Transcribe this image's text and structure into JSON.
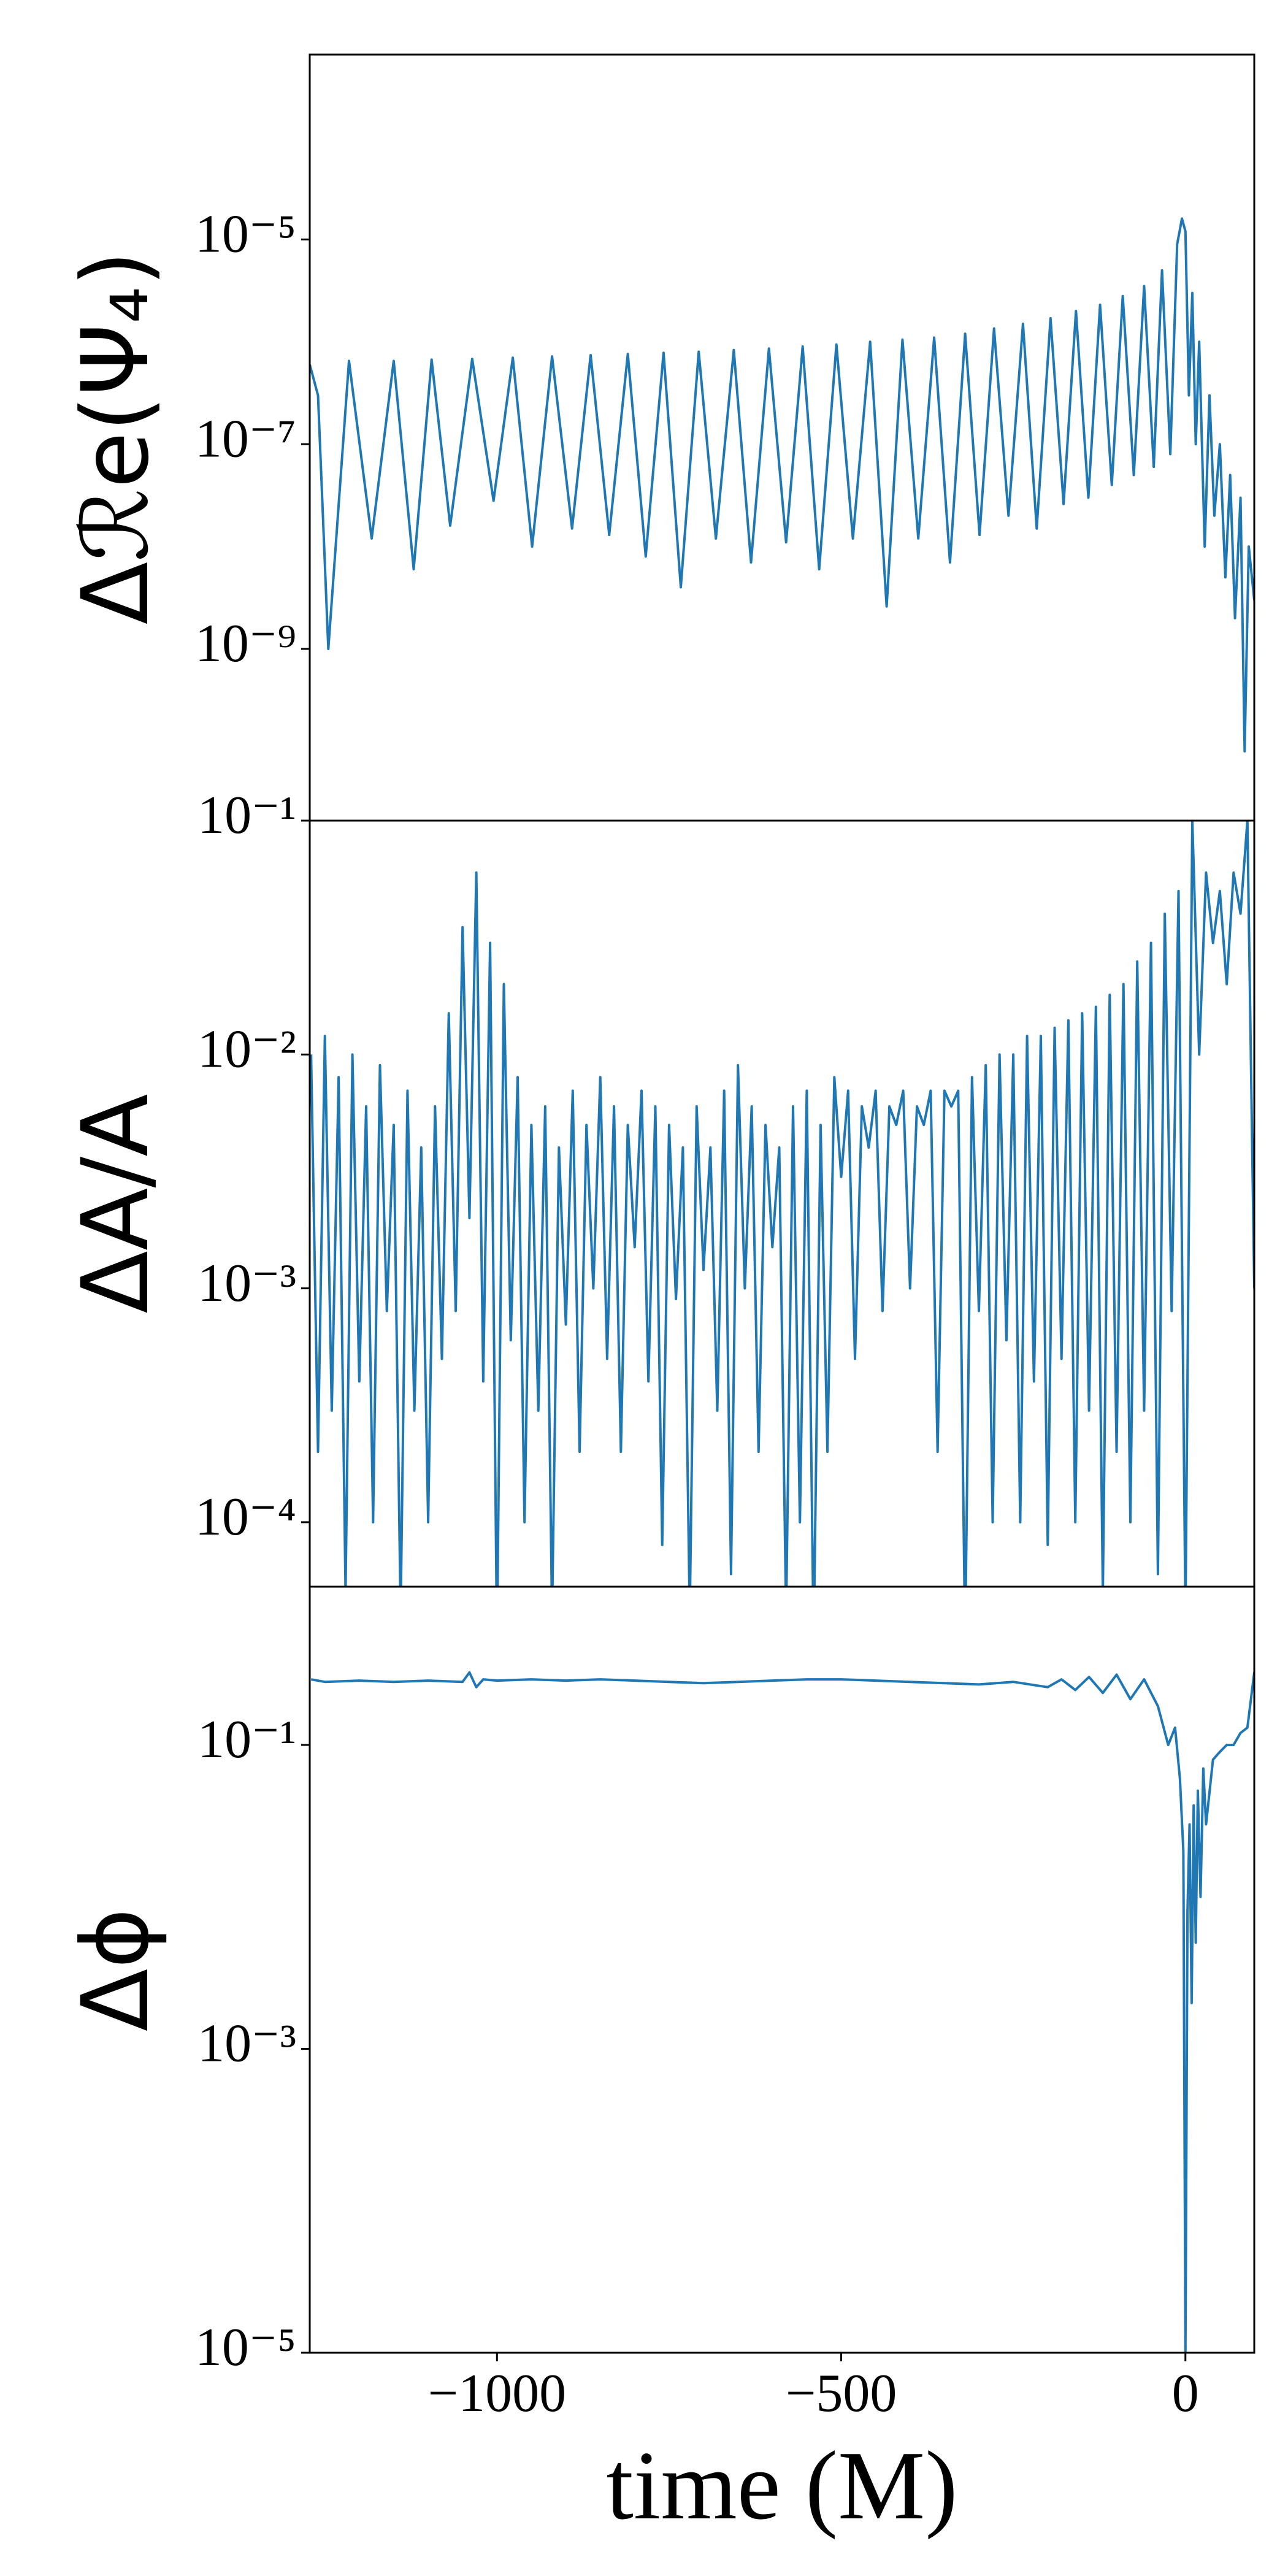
{
  "chart_data": [
    {
      "type": "line",
      "ylabel": "Δℛe(Ψ₄)",
      "yscale": "log",
      "xlim": [
        -1272,
        100
      ],
      "ylim": [
        2.1e-11,
        0.00064
      ],
      "yticks": [
        {
          "value": 1e-05,
          "label": "10⁻⁵"
        },
        {
          "value": 1e-07,
          "label": "10⁻⁷"
        },
        {
          "value": 1e-09,
          "label": "10⁻⁹"
        }
      ],
      "series": [
        {
          "color": "#1f77b4",
          "x": [
            -1272,
            -1260,
            -1245,
            -1215,
            -1182,
            -1150,
            -1121,
            -1095,
            -1068,
            -1036,
            -1005,
            -977,
            -949,
            -920,
            -891,
            -864,
            -837,
            -810,
            -784,
            -758,
            -733,
            -707,
            -682,
            -656,
            -631,
            -605,
            -580,
            -556,
            -532,
            -507,
            -483,
            -458,
            -434,
            -411,
            -388,
            -365,
            -342,
            -320,
            -299,
            -278,
            -257,
            -236,
            -216,
            -196,
            -177,
            -159,
            -141,
            -124,
            -107,
            -91,
            -75,
            -60,
            -46,
            -34,
            -22,
            -12,
            -5,
            0,
            5,
            10,
            15,
            20,
            28,
            35,
            42,
            50,
            58,
            65,
            72,
            80,
            86,
            92,
            100
          ],
          "values": [
            6e-07,
            3e-07,
            1e-09,
            6.5e-07,
            1.2e-08,
            6.5e-07,
            6e-09,
            6.7e-07,
            1.6e-08,
            6.8e-07,
            2.8e-08,
            7e-07,
            1e-08,
            7.2e-07,
            1.5e-08,
            7.4e-07,
            1.3e-08,
            7.6e-07,
            8e-09,
            7.8e-07,
            4e-09,
            8e-07,
            1.2e-08,
            8.3e-07,
            7e-09,
            8.6e-07,
            1.1e-08,
            9e-07,
            6e-09,
            9.4e-07,
            1.2e-08,
            1e-06,
            2.6e-09,
            1.05e-06,
            1.2e-08,
            1.1e-06,
            7e-09,
            1.2e-06,
            1.3e-08,
            1.35e-06,
            2e-08,
            1.5e-06,
            1.5e-08,
            1.7e-06,
            2.6e-08,
            2e-06,
            3e-08,
            2.3e-06,
            4e-08,
            2.8e-06,
            5e-08,
            3.5e-06,
            6e-08,
            5e-06,
            8e-08,
            9e-06,
            1.6e-05,
            1.2e-05,
            3e-07,
            3e-06,
            1e-07,
            1e-06,
            1e-08,
            3e-07,
            2e-08,
            1e-07,
            5e-09,
            5e-08,
            2e-09,
            3e-08,
            1e-10,
            1e-08,
            3e-09
          ]
        }
      ]
    },
    {
      "type": "line",
      "ylabel": "ΔA/A",
      "yscale": "log",
      "xlim": [
        -1272,
        100
      ],
      "ylim": [
        5.3e-05,
        0.1
      ],
      "yticks": [
        {
          "value": 0.0001,
          "label": "10⁻⁴"
        },
        {
          "value": 0.001,
          "label": "10⁻³"
        },
        {
          "value": 0.01,
          "label": "10⁻²"
        },
        {
          "value": 0.1,
          "label": "10⁻¹"
        }
      ],
      "series": [
        {
          "color": "#1f77b4",
          "x": [
            -1270,
            -1260,
            -1250,
            -1240,
            -1230,
            -1220,
            -1210,
            -1200,
            -1190,
            -1180,
            -1170,
            -1160,
            -1150,
            -1140,
            -1130,
            -1120,
            -1110,
            -1100,
            -1090,
            -1080,
            -1070,
            -1060,
            -1050,
            -1040,
            -1030,
            -1020,
            -1010,
            -1000,
            -990,
            -980,
            -970,
            -960,
            -950,
            -940,
            -930,
            -920,
            -910,
            -900,
            -890,
            -880,
            -870,
            -860,
            -850,
            -840,
            -830,
            -820,
            -810,
            -800,
            -790,
            -780,
            -770,
            -760,
            -750,
            -740,
            -730,
            -720,
            -710,
            -700,
            -690,
            -680,
            -670,
            -660,
            -650,
            -640,
            -630,
            -620,
            -610,
            -600,
            -590,
            -580,
            -570,
            -560,
            -550,
            -540,
            -530,
            -520,
            -510,
            -500,
            -490,
            -480,
            -470,
            -460,
            -450,
            -440,
            -430,
            -420,
            -410,
            -400,
            -390,
            -380,
            -370,
            -360,
            -350,
            -340,
            -330,
            -320,
            -310,
            -300,
            -290,
            -280,
            -270,
            -260,
            -250,
            -240,
            -230,
            -220,
            -210,
            -200,
            -190,
            -180,
            -170,
            -160,
            -150,
            -140,
            -130,
            -120,
            -110,
            -100,
            -90,
            -80,
            -70,
            -60,
            -50,
            -40,
            -30,
            -20,
            -10,
            0,
            10,
            20,
            30,
            40,
            50,
            60,
            70,
            80,
            90,
            100
          ],
          "values": [
            0.01,
            0.0002,
            0.012,
            0.0003,
            0.008,
            5e-05,
            0.01,
            0.0004,
            0.006,
            0.0001,
            0.009,
            0.0008,
            0.005,
            4e-05,
            0.007,
            0.0003,
            0.004,
            0.0001,
            0.006,
            0.0005,
            0.015,
            0.0008,
            0.035,
            0.002,
            0.06,
            0.0004,
            0.03,
            3e-05,
            0.02,
            0.0006,
            0.008,
            0.0001,
            0.005,
            0.0003,
            0.006,
            4e-05,
            0.004,
            0.0007,
            0.007,
            0.0002,
            0.005,
            0.001,
            0.008,
            0.0005,
            0.006,
            0.0002,
            0.005,
            0.0015,
            0.007,
            0.0004,
            0.006,
            8e-05,
            0.005,
            0.0009,
            0.004,
            4e-05,
            0.006,
            0.0012,
            0.004,
            0.0003,
            0.007,
            6e-05,
            0.009,
            0.001,
            0.006,
            0.0002,
            0.005,
            0.0015,
            0.004,
            4e-05,
            0.006,
            0.0001,
            0.007,
            3e-05,
            0.005,
            0.0002,
            0.008,
            0.003,
            0.007,
            0.0005,
            0.006,
            0.004,
            0.007,
            0.0008,
            0.006,
            0.005,
            0.007,
            0.001,
            0.006,
            0.005,
            0.007,
            0.0002,
            0.007,
            0.006,
            0.007,
            3e-05,
            0.008,
            0.0008,
            0.009,
            0.0001,
            0.01,
            0.0006,
            0.01,
            0.0001,
            0.012,
            0.0004,
            0.012,
            8e-05,
            0.013,
            0.0005,
            0.014,
            0.0001,
            0.015,
            0.0003,
            0.016,
            5e-05,
            0.018,
            0.0002,
            0.02,
            0.0001,
            0.025,
            0.0003,
            0.03,
            6e-05,
            0.04,
            0.0008,
            0.05,
            4e-05,
            0.1,
            0.01,
            0.06,
            0.03,
            0.05,
            0.02,
            0.06,
            0.04,
            0.1,
            0.001
          ]
        }
      ]
    },
    {
      "type": "line",
      "ylabel": "Δϕ",
      "xlabel": "time (M)",
      "yscale": "log",
      "xlim": [
        -1272,
        100
      ],
      "ylim": [
        1e-05,
        1.1
      ],
      "xticks": [
        {
          "value": -1000,
          "label": "−1000"
        },
        {
          "value": -500,
          "label": "−500"
        },
        0
      ],
      "yticks": [
        {
          "value": 0.1,
          "label": "10⁻¹"
        },
        {
          "value": 0.001,
          "label": "10⁻³"
        },
        {
          "value": 1e-05,
          "label": "10⁻⁵"
        }
      ],
      "series": [
        {
          "color": "#1f77b4",
          "x": [
            -1270,
            -1250,
            -1200,
            -1150,
            -1100,
            -1050,
            -1040,
            -1030,
            -1020,
            -1000,
            -950,
            -900,
            -850,
            -800,
            -750,
            -700,
            -650,
            -600,
            -550,
            -500,
            -450,
            -400,
            -350,
            -300,
            -250,
            -200,
            -180,
            -160,
            -140,
            -120,
            -100,
            -80,
            -60,
            -40,
            -25,
            -15,
            -8,
            -3,
            0,
            3,
            6,
            9,
            12,
            15,
            18,
            22,
            26,
            30,
            40,
            50,
            60,
            70,
            80,
            90,
            100
          ],
          "values": [
            0.27,
            0.26,
            0.265,
            0.26,
            0.265,
            0.26,
            0.3,
            0.24,
            0.27,
            0.265,
            0.27,
            0.265,
            0.27,
            0.265,
            0.26,
            0.255,
            0.26,
            0.265,
            0.27,
            0.27,
            0.265,
            0.26,
            0.255,
            0.25,
            0.26,
            0.24,
            0.27,
            0.23,
            0.28,
            0.22,
            0.29,
            0.2,
            0.27,
            0.18,
            0.1,
            0.13,
            0.06,
            0.02,
            1e-05,
            0.008,
            0.03,
            0.002,
            0.04,
            0.005,
            0.05,
            0.01,
            0.07,
            0.03,
            0.08,
            0.09,
            0.1,
            0.1,
            0.12,
            0.13,
            0.3
          ]
        }
      ]
    }
  ]
}
